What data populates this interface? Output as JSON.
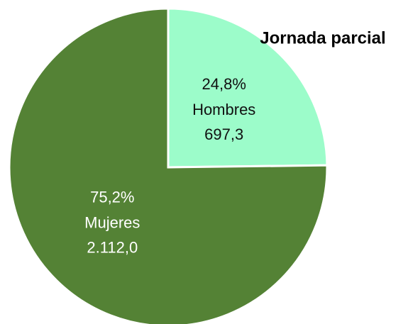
{
  "chart_data": {
    "type": "pie",
    "title": "Jornada parcial",
    "categories": [
      "Hombres",
      "Mujeres"
    ],
    "values": [
      24.8,
      75.2
    ],
    "value_labels": [
      "24,8%",
      "75,2%"
    ],
    "amounts": [
      697.3,
      2112.0
    ],
    "amount_labels": [
      "697,3",
      "2.112,0"
    ],
    "colors": [
      "#9cfcca",
      "#548235"
    ],
    "label_colors": [
      "#111111",
      "#ffffff"
    ]
  }
}
